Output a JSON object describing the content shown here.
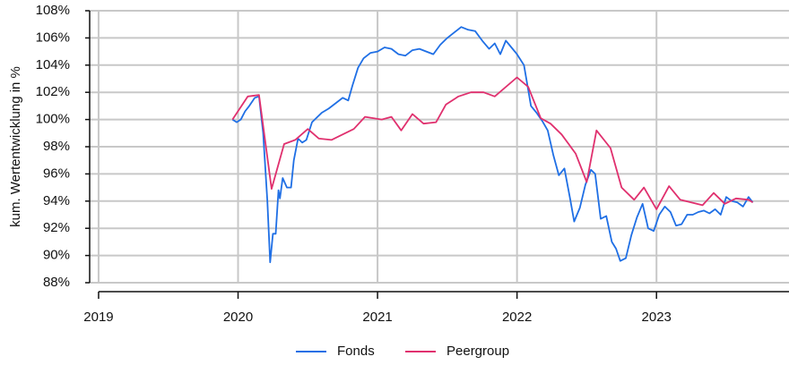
{
  "chart_data": {
    "type": "line",
    "y_label": "kum. Wertentwicklung in %",
    "xlim": [
      2018.936,
      2023.95
    ],
    "xticks": [
      2019,
      2020,
      2021,
      2022,
      2023
    ],
    "ylim": [
      88,
      108
    ],
    "yticks": [
      {
        "value": 88,
        "label": "88%"
      },
      {
        "value": 90,
        "label": "90%"
      },
      {
        "value": 92,
        "label": "92%"
      },
      {
        "value": 94,
        "label": "94%"
      },
      {
        "value": 96,
        "label": "96%"
      },
      {
        "value": 98,
        "label": "98%"
      },
      {
        "value": 100,
        "label": "100%"
      },
      {
        "value": 102,
        "label": "102%"
      },
      {
        "value": 104,
        "label": "104%"
      },
      {
        "value": 106,
        "label": "106%"
      },
      {
        "value": 108,
        "label": "108%"
      }
    ],
    "grid": true,
    "legend": "bottom",
    "series": [
      {
        "name": "Fonds",
        "color": "#1f6fe5",
        "x": [
          2019.96,
          2019.99,
          2020.02,
          2020.05,
          2020.08,
          2020.12,
          2020.15,
          2020.18,
          2020.21,
          2020.23,
          2020.25,
          2020.27,
          2020.29,
          2020.3,
          2020.32,
          2020.35,
          2020.38,
          2020.4,
          2020.43,
          2020.46,
          2020.49,
          2020.53,
          2020.56,
          2020.6,
          2020.65,
          2020.7,
          2020.75,
          2020.79,
          2020.82,
          2020.86,
          2020.9,
          2020.95,
          2021.0,
          2021.05,
          2021.1,
          2021.15,
          2021.2,
          2021.25,
          2021.3,
          2021.35,
          2021.4,
          2021.45,
          2021.5,
          2021.55,
          2021.6,
          2021.65,
          2021.7,
          2021.75,
          2021.8,
          2021.84,
          2021.88,
          2021.92,
          2021.96,
          2022.0,
          2022.05,
          2022.1,
          2022.14,
          2022.18,
          2022.22,
          2022.26,
          2022.3,
          2022.34,
          2022.38,
          2022.41,
          2022.45,
          2022.49,
          2022.53,
          2022.56,
          2022.6,
          2022.64,
          2022.68,
          2022.71,
          2022.74,
          2022.78,
          2022.82,
          2022.86,
          2022.9,
          2022.94,
          2022.98,
          2023.02,
          2023.06,
          2023.1,
          2023.14,
          2023.18,
          2023.22,
          2023.26,
          2023.3,
          2023.34,
          2023.38,
          2023.42,
          2023.46,
          2023.5,
          2023.54,
          2023.58,
          2023.62,
          2023.66,
          2023.69
        ],
        "values": [
          100.0,
          99.8,
          100.0,
          100.6,
          101.0,
          101.6,
          101.7,
          99.0,
          94.0,
          89.5,
          91.6,
          91.6,
          94.8,
          94.2,
          95.7,
          95.0,
          95.0,
          97.0,
          98.6,
          98.3,
          98.5,
          99.8,
          100.1,
          100.5,
          100.8,
          101.2,
          101.6,
          101.4,
          102.5,
          103.8,
          104.5,
          104.9,
          105.0,
          105.3,
          105.2,
          104.8,
          104.7,
          105.1,
          105.2,
          105.0,
          104.8,
          105.5,
          106.0,
          106.4,
          106.8,
          106.6,
          106.5,
          105.8,
          105.2,
          105.6,
          104.8,
          105.8,
          105.3,
          104.8,
          104.0,
          101.0,
          100.5,
          99.9,
          99.2,
          97.4,
          95.9,
          96.4,
          94.2,
          92.5,
          93.5,
          95.2,
          96.3,
          96.0,
          92.7,
          92.9,
          91.0,
          90.5,
          89.6,
          89.8,
          91.5,
          92.8,
          93.8,
          92.0,
          91.8,
          93.0,
          93.6,
          93.2,
          92.2,
          92.3,
          93.0,
          93.0,
          93.2,
          93.3,
          93.1,
          93.4,
          93.0,
          94.3,
          94.0,
          93.9,
          93.6,
          94.3,
          93.9
        ]
      },
      {
        "name": "Peergroup",
        "color": "#e0306e",
        "x": [
          2019.96,
          2020.07,
          2020.15,
          2020.24,
          2020.33,
          2020.41,
          2020.5,
          2020.58,
          2020.67,
          2020.83,
          2020.91,
          2021.03,
          2021.1,
          2021.17,
          2021.25,
          2021.33,
          2021.42,
          2021.49,
          2021.58,
          2021.67,
          2021.76,
          2021.84,
          2022.0,
          2022.08,
          2022.17,
          2022.24,
          2022.32,
          2022.42,
          2022.5,
          2022.57,
          2022.67,
          2022.75,
          2022.84,
          2022.91,
          2023.0,
          2023.09,
          2023.17,
          2023.33,
          2023.41,
          2023.49,
          2023.57,
          2023.66,
          2023.69
        ],
        "values": [
          100.0,
          101.7,
          101.8,
          94.9,
          98.2,
          98.5,
          99.3,
          98.6,
          98.5,
          99.3,
          100.2,
          100.0,
          100.2,
          99.2,
          100.4,
          99.7,
          99.8,
          101.1,
          101.7,
          102.0,
          102.0,
          101.7,
          103.1,
          102.4,
          100.1,
          99.7,
          98.9,
          97.5,
          95.4,
          99.2,
          97.9,
          95.0,
          94.1,
          95.0,
          93.4,
          95.1,
          94.1,
          93.7,
          94.6,
          93.8,
          94.2,
          94.1,
          93.9
        ]
      }
    ]
  }
}
